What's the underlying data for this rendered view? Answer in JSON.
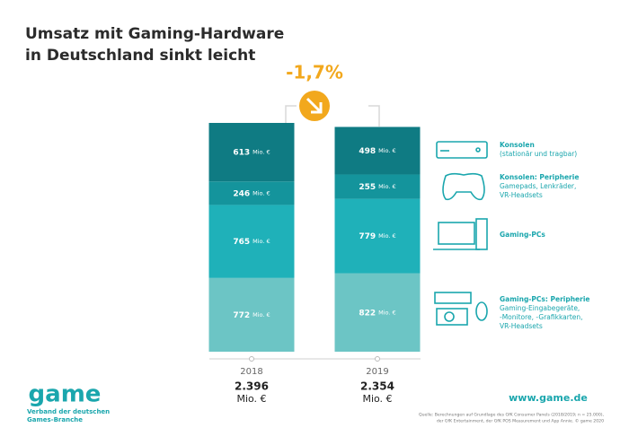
{
  "chart_data": {
    "type": "stacked_bar",
    "title": [
      "Umsatz mit Gaming-Hardware",
      "in Deutschland sinkt leicht"
    ],
    "categories": [
      "2018",
      "2019"
    ],
    "unit": "Mio. €",
    "series": [
      {
        "name": "Gaming-PCs: Peripherie",
        "note": [
          "Gaming-Eingabegeräte,",
          "-Monitore, -Grafikkarten,",
          "VR-Headsets"
        ],
        "color": "#6cc5c5",
        "values": [
          772,
          822
        ]
      },
      {
        "name": "Gaming-PCs",
        "note": [],
        "color": "#1fb1b9",
        "values": [
          765,
          779
        ]
      },
      {
        "name": "Konsolen: Peripherie",
        "note": [
          "Gamepads, Lenkräder,",
          "VR-Headsets"
        ],
        "color": "#14949c",
        "values": [
          246,
          255
        ]
      },
      {
        "name": "Konsolen",
        "note": [
          "(stationär und tragbar)"
        ],
        "color": "#0f7b83",
        "values": [
          613,
          498
        ]
      }
    ],
    "totals": [
      {
        "value": 2396,
        "label": "2.396"
      },
      {
        "value": 2354,
        "label": "2.354"
      }
    ],
    "change_label": "-1,7%",
    "logo": "game",
    "logo_subtitle": [
      "Verband der deutschen",
      "Games-Branche"
    ],
    "website": "www.game.de",
    "source": [
      "Quelle: Berechnungen auf Grundlage des GfK Consumer Panels (2018/2019; n = 25.000),",
      "der GfK Entertainment, der GfK POS Measurement und App Annie. © game 2020"
    ]
  }
}
